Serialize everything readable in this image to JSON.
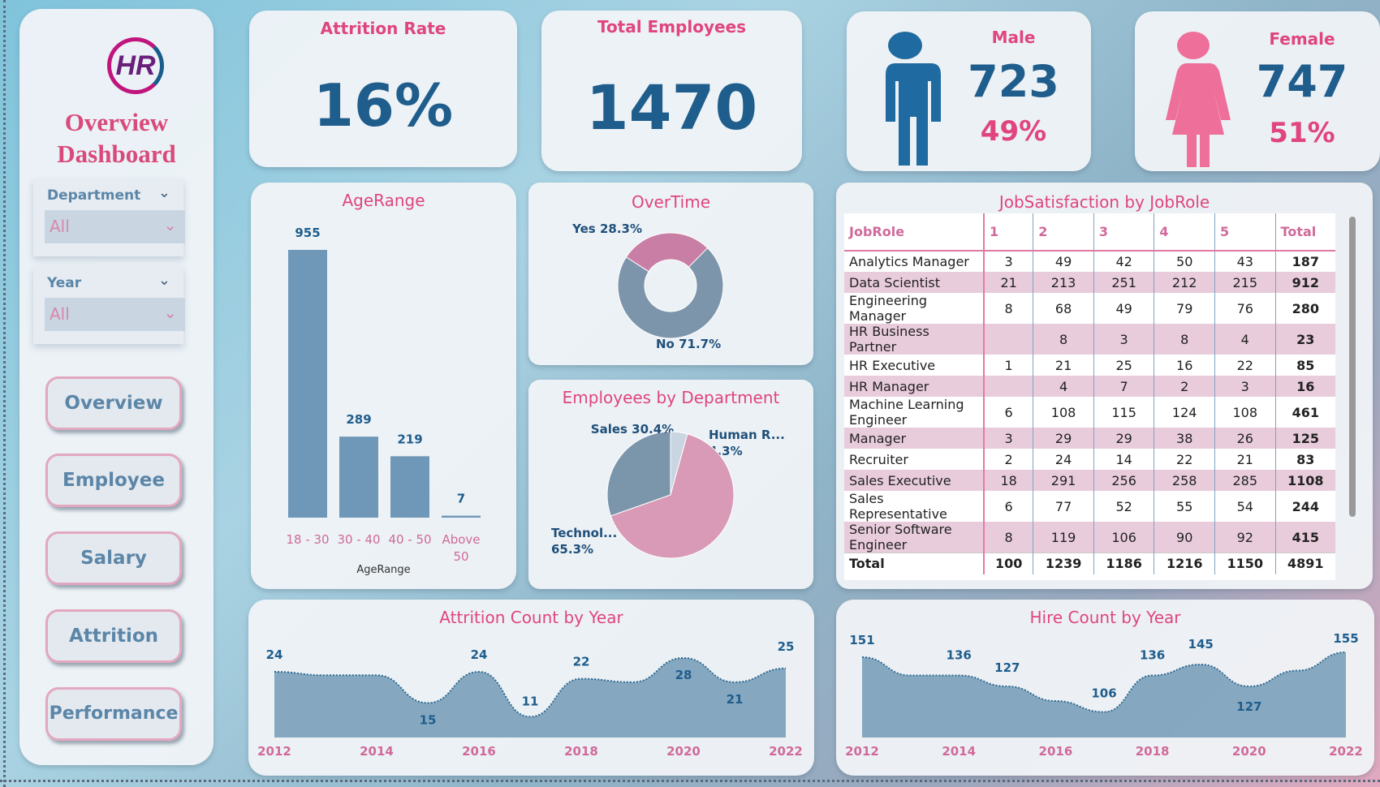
{
  "sidebar": {
    "logo": "HR",
    "title_line1": "Overview",
    "title_line2": "Dashboard",
    "slicers": [
      {
        "label": "Department",
        "value": "All"
      },
      {
        "label": "Year",
        "value": "All"
      }
    ],
    "nav": [
      "Overview",
      "Employee",
      "Salary",
      "Attrition",
      "Performance"
    ]
  },
  "kpis": {
    "attrition_rate": {
      "label": "Attrition Rate",
      "value": "16%"
    },
    "total_employees": {
      "label": "Total Employees",
      "value": "1470"
    },
    "male": {
      "label": "Male",
      "count": "723",
      "pct": "49%"
    },
    "female": {
      "label": "Female",
      "count": "747",
      "pct": "51%"
    }
  },
  "colors": {
    "accent": "#e0457e",
    "blue": "#1f5d8c",
    "bar": "#6f98b8",
    "pink": "#d89ab6"
  },
  "chart_data": [
    {
      "id": "age",
      "type": "bar",
      "title": "AgeRange",
      "xlabel": "AgeRange",
      "categories": [
        "18 - 30",
        "30 - 40",
        "40 - 50",
        "Above 50"
      ],
      "values": [
        955,
        289,
        219,
        7
      ]
    },
    {
      "id": "overtime",
      "type": "pie",
      "title": "OverTime",
      "donut": true,
      "slices": [
        {
          "label": "Yes 28.3%",
          "value": 28.3,
          "color": "#c97fa5"
        },
        {
          "label": "No 71.7%",
          "value": 71.7,
          "color": "#7d95ab"
        }
      ]
    },
    {
      "id": "dept",
      "type": "pie",
      "title": "Employees by Department",
      "slices": [
        {
          "label": "Sales 30.4%",
          "value": 30.4,
          "color": "#7b95ab"
        },
        {
          "label": "Human R... 4.3%",
          "value": 4.3,
          "color": "#c9d6e2"
        },
        {
          "label": "Technol... 65.3%",
          "value": 65.3,
          "color": "#d89ab6"
        }
      ]
    },
    {
      "id": "attr",
      "type": "area",
      "title": "Attrition Count by Year",
      "x": [
        2012,
        2013,
        2014,
        2015,
        2016,
        2017,
        2018,
        2019,
        2020,
        2021,
        2022
      ],
      "values": [
        24,
        23,
        23,
        15,
        24,
        11,
        22,
        21,
        28,
        21,
        25
      ],
      "labeled": [
        true,
        false,
        false,
        true,
        true,
        true,
        true,
        false,
        true,
        true,
        true
      ],
      "xticks": [
        "2012",
        "2014",
        "2016",
        "2018",
        "2020",
        "2022"
      ]
    },
    {
      "id": "hire",
      "type": "area",
      "title": "Hire Count by Year",
      "x": [
        2012,
        2013,
        2014,
        2015,
        2016,
        2017,
        2018,
        2019,
        2020,
        2021,
        2022
      ],
      "values": [
        151,
        136,
        136,
        127,
        115,
        106,
        136,
        145,
        127,
        140,
        155
      ],
      "labeled": [
        true,
        false,
        true,
        true,
        false,
        true,
        true,
        true,
        true,
        false,
        true
      ],
      "xticks": [
        "2012",
        "2014",
        "2016",
        "2018",
        "2020",
        "2022"
      ]
    },
    {
      "id": "jobsat",
      "type": "table",
      "title": "JobSatisfaction by JobRole",
      "columns": [
        "JobRole",
        "1",
        "2",
        "3",
        "4",
        "5",
        "Total"
      ],
      "rows": [
        [
          "Analytics Manager",
          "3",
          "49",
          "42",
          "50",
          "43",
          "187"
        ],
        [
          "Data Scientist",
          "21",
          "213",
          "251",
          "212",
          "215",
          "912"
        ],
        [
          "Engineering Manager",
          "8",
          "68",
          "49",
          "79",
          "76",
          "280"
        ],
        [
          "HR Business Partner",
          "",
          "8",
          "3",
          "8",
          "4",
          "23"
        ],
        [
          "HR Executive",
          "1",
          "21",
          "25",
          "16",
          "22",
          "85"
        ],
        [
          "HR Manager",
          "",
          "4",
          "7",
          "2",
          "3",
          "16"
        ],
        [
          "Machine Learning Engineer",
          "6",
          "108",
          "115",
          "124",
          "108",
          "461"
        ],
        [
          "Manager",
          "3",
          "29",
          "29",
          "38",
          "26",
          "125"
        ],
        [
          "Recruiter",
          "2",
          "24",
          "14",
          "22",
          "21",
          "83"
        ],
        [
          "Sales Executive",
          "18",
          "291",
          "256",
          "258",
          "285",
          "1108"
        ],
        [
          "Sales Representative",
          "6",
          "77",
          "52",
          "55",
          "54",
          "244"
        ],
        [
          "Senior Software Engineer",
          "8",
          "119",
          "106",
          "90",
          "92",
          "415"
        ]
      ],
      "total": [
        "Total",
        "100",
        "1239",
        "1186",
        "1216",
        "1150",
        "4891"
      ]
    }
  ]
}
